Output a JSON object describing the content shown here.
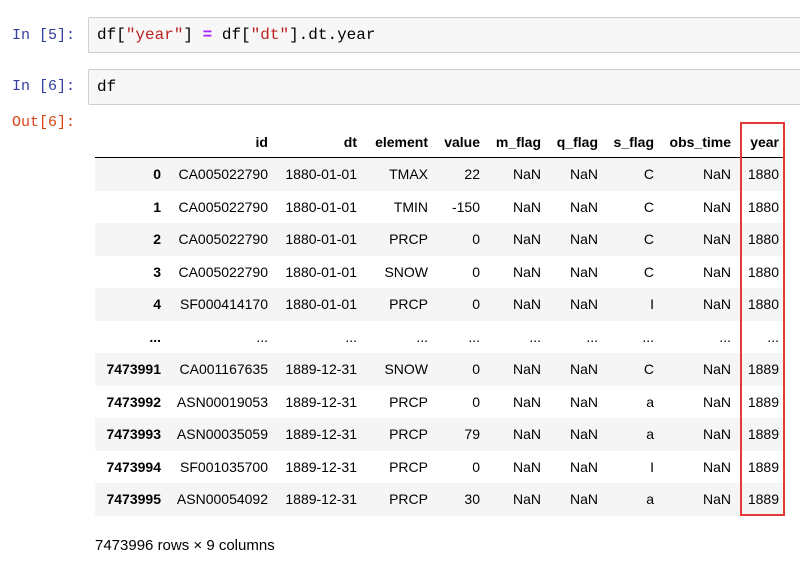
{
  "cells": [
    {
      "prompt": "In [5]:",
      "code_parts": [
        "df[",
        "\"year\"",
        "] ",
        "=",
        "df[",
        "\"dt\"",
        "].dt.year"
      ]
    },
    {
      "prompt": "In [6]:",
      "code": "df"
    }
  ],
  "output_prompt": "Out[6]:",
  "table": {
    "columns": [
      "",
      "id",
      "dt",
      "element",
      "value",
      "m_flag",
      "q_flag",
      "s_flag",
      "obs_time",
      "year"
    ],
    "rows": [
      [
        "0",
        "CA005022790",
        "1880-01-01",
        "TMAX",
        "22",
        "NaN",
        "NaN",
        "C",
        "NaN",
        "1880"
      ],
      [
        "1",
        "CA005022790",
        "1880-01-01",
        "TMIN",
        "-150",
        "NaN",
        "NaN",
        "C",
        "NaN",
        "1880"
      ],
      [
        "2",
        "CA005022790",
        "1880-01-01",
        "PRCP",
        "0",
        "NaN",
        "NaN",
        "C",
        "NaN",
        "1880"
      ],
      [
        "3",
        "CA005022790",
        "1880-01-01",
        "SNOW",
        "0",
        "NaN",
        "NaN",
        "C",
        "NaN",
        "1880"
      ],
      [
        "4",
        "SF000414170",
        "1880-01-01",
        "PRCP",
        "0",
        "NaN",
        "NaN",
        "I",
        "NaN",
        "1880"
      ],
      [
        "...",
        "...",
        "...",
        "...",
        "...",
        "...",
        "...",
        "...",
        "...",
        "..."
      ],
      [
        "7473991",
        "CA001167635",
        "1889-12-31",
        "SNOW",
        "0",
        "NaN",
        "NaN",
        "C",
        "NaN",
        "1889"
      ],
      [
        "7473992",
        "ASN00019053",
        "1889-12-31",
        "PRCP",
        "0",
        "NaN",
        "NaN",
        "a",
        "NaN",
        "1889"
      ],
      [
        "7473993",
        "ASN00035059",
        "1889-12-31",
        "PRCP",
        "79",
        "NaN",
        "NaN",
        "a",
        "NaN",
        "1889"
      ],
      [
        "7473994",
        "SF001035700",
        "1889-12-31",
        "PRCP",
        "0",
        "NaN",
        "NaN",
        "I",
        "NaN",
        "1889"
      ],
      [
        "7473995",
        "ASN00054092",
        "1889-12-31",
        "PRCP",
        "30",
        "NaN",
        "NaN",
        "a",
        "NaN",
        "1889"
      ]
    ],
    "highlight_color": "#e53935"
  },
  "footer": "7473996 rows × 9 columns"
}
